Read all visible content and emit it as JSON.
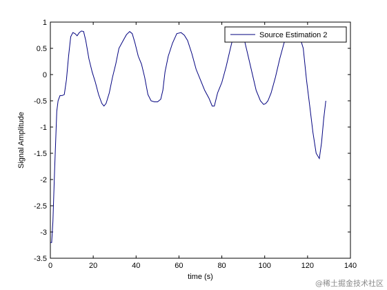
{
  "chart_data": {
    "type": "line",
    "title": "",
    "xlabel": "time (s)",
    "ylabel": "Signal Amplitude",
    "xlim": [
      0,
      140
    ],
    "ylim": [
      -3.5,
      1
    ],
    "xticks": [
      0,
      20,
      40,
      60,
      80,
      100,
      120,
      140
    ],
    "yticks": [
      -3.5,
      -3,
      -2.5,
      -2,
      -1.5,
      -1,
      -0.5,
      0,
      0.5,
      1
    ],
    "xtick_labels": [
      "0",
      "20",
      "40",
      "60",
      "80",
      "100",
      "120",
      "140"
    ],
    "ytick_labels": [
      "-3.5",
      "-3",
      "-2.5",
      "-2",
      "-1.5",
      "-1",
      "-0.5",
      "0",
      "0.5",
      "1"
    ],
    "grid": false,
    "legend_position": "top-right",
    "series": [
      {
        "name": "Source Estimation 2",
        "color": "#00007f",
        "x": [
          0,
          0.6,
          1.2,
          2,
          3,
          3.6,
          4.5,
          5.5,
          6.5,
          7.5,
          8.5,
          9.5,
          10.5,
          11.5,
          12.5,
          13.5,
          14.5,
          15.5,
          16.5,
          18,
          19.5,
          21,
          22.5,
          24,
          25,
          26,
          27.5,
          29,
          30.5,
          32,
          34,
          35.5,
          37,
          38.2,
          39.5,
          41,
          42.5,
          44,
          45.5,
          47,
          48.5,
          50,
          51.5,
          52.5,
          53.5,
          55,
          57,
          59,
          61,
          62.5,
          64,
          66,
          68,
          70,
          72,
          74,
          75.5,
          76.5,
          78,
          80,
          82,
          84,
          85.5,
          87,
          88.5,
          90,
          92,
          94,
          96,
          98,
          99.5,
          100.5,
          101.5,
          103,
          105,
          107,
          109,
          111,
          113,
          115,
          116.5,
          118,
          119.5,
          121,
          122.5,
          124,
          125.5,
          126.5,
          127.5,
          128.5
        ],
        "values": [
          -3.2,
          -3.2,
          -2.8,
          -1.8,
          -0.7,
          -0.5,
          -0.4,
          -0.4,
          -0.38,
          -0.1,
          0.35,
          0.72,
          0.8,
          0.78,
          0.74,
          0.8,
          0.83,
          0.82,
          0.65,
          0.3,
          0.05,
          -0.15,
          -0.38,
          -0.55,
          -0.6,
          -0.55,
          -0.35,
          -0.05,
          0.2,
          0.5,
          0.65,
          0.76,
          0.82,
          0.78,
          0.6,
          0.35,
          0.2,
          -0.05,
          -0.38,
          -0.5,
          -0.52,
          -0.52,
          -0.47,
          -0.3,
          0.05,
          0.35,
          0.6,
          0.78,
          0.8,
          0.75,
          0.65,
          0.4,
          0.1,
          -0.1,
          -0.3,
          -0.45,
          -0.6,
          -0.6,
          -0.35,
          -0.15,
          0.15,
          0.5,
          0.75,
          0.88,
          0.9,
          0.75,
          0.4,
          0.05,
          -0.3,
          -0.5,
          -0.57,
          -0.55,
          -0.5,
          -0.35,
          -0.05,
          0.3,
          0.6,
          0.8,
          0.9,
          0.9,
          0.7,
          0.5,
          -0.1,
          -0.6,
          -1.1,
          -1.5,
          -1.6,
          -1.3,
          -0.85,
          -0.5
        ]
      }
    ]
  },
  "watermark": "@稀土掘金技术社区"
}
